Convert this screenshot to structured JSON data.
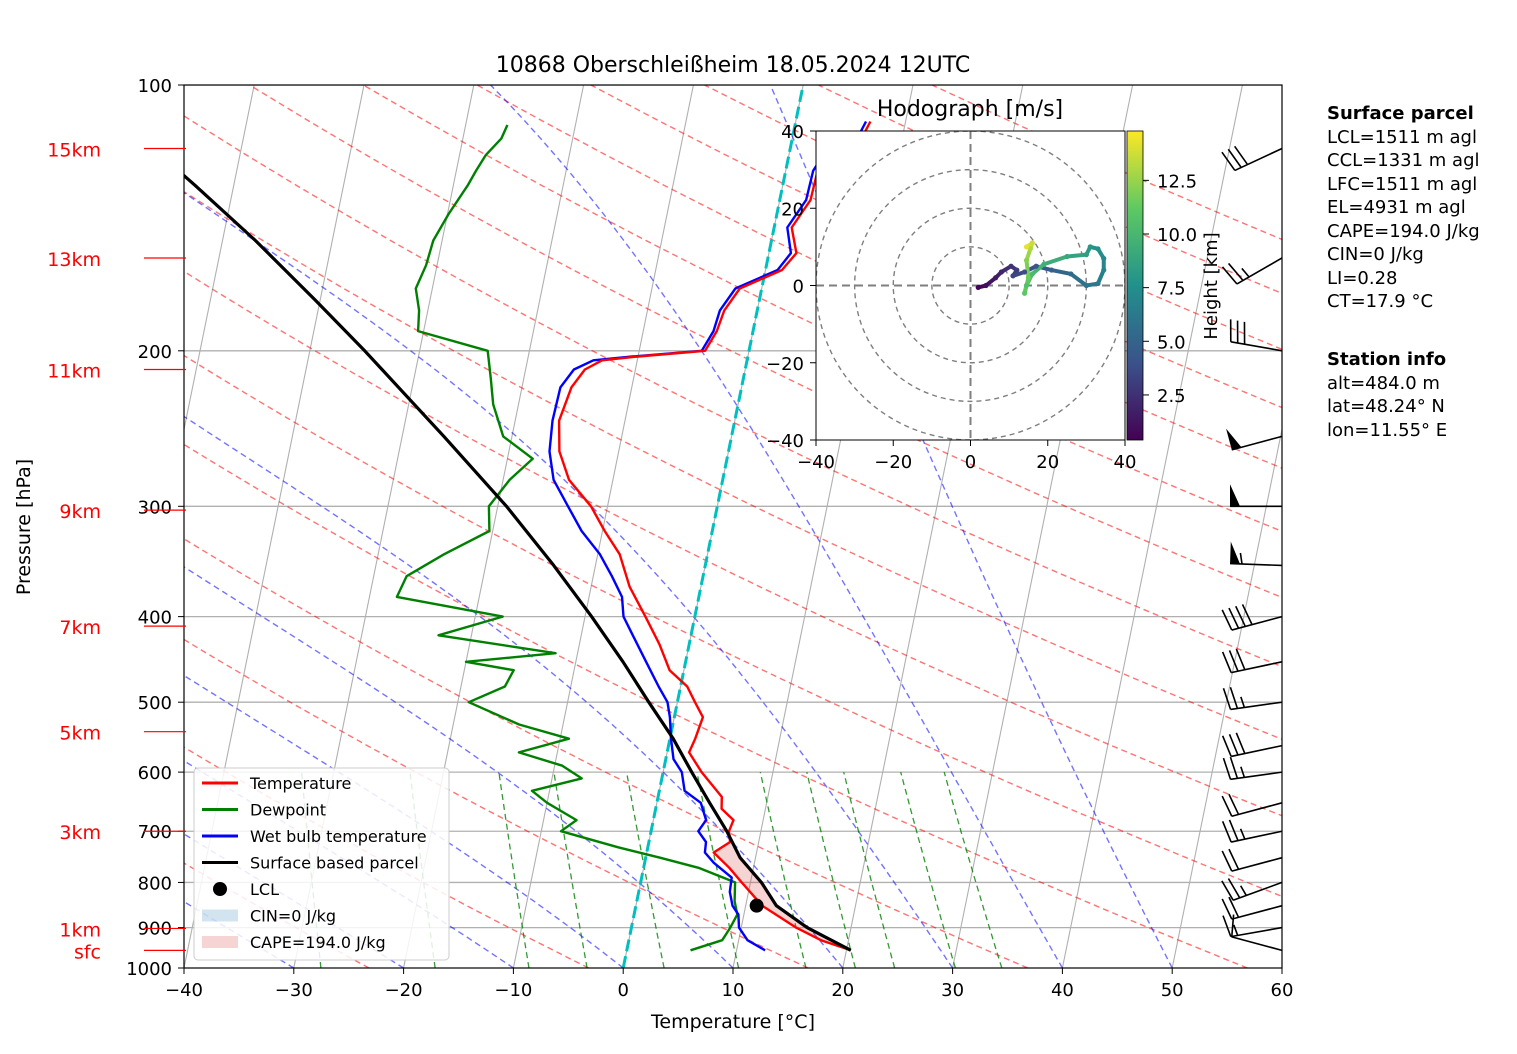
{
  "chart_data": {
    "type": "line",
    "title": "10868 Oberschleißheim 18.05.2024 12UTC",
    "xlabel": "Temperature [°C]",
    "ylabel": "Pressure [hPa]",
    "xlim": [
      -40,
      60
    ],
    "ylim": [
      1000,
      100
    ],
    "y_scale": "log",
    "grid": true,
    "x_ticks": [
      "−40",
      "−30",
      "−20",
      "−10",
      "0",
      "10",
      "20",
      "30",
      "40",
      "50",
      "60"
    ],
    "y_ticks": [
      "100",
      "200",
      "300",
      "400",
      "500",
      "600",
      "700",
      "800",
      "900",
      "1000"
    ],
    "height_labels": [
      {
        "label": "15km",
        "p": 118
      },
      {
        "label": "13km",
        "p": 157
      },
      {
        "label": "11km",
        "p": 210
      },
      {
        "label": "9km",
        "p": 303
      },
      {
        "label": "7km",
        "p": 410
      },
      {
        "label": "5km",
        "p": 540
      },
      {
        "label": "3km",
        "p": 700
      },
      {
        "label": "1km",
        "p": 902
      },
      {
        "label": "sfc",
        "p": 955
      }
    ],
    "legend": {
      "placement": "lower-left",
      "entries": [
        {
          "label": "Temperature",
          "color": "#ff0000",
          "kind": "line"
        },
        {
          "label": "Dewpoint",
          "color": "#008000",
          "kind": "line"
        },
        {
          "label": "Wet bulb temperature",
          "color": "#0000ff",
          "kind": "line"
        },
        {
          "label": "Surface based parcel",
          "color": "#000000",
          "kind": "line"
        },
        {
          "label": "LCL",
          "color": "#000000",
          "kind": "dot"
        },
        {
          "label": "CIN=0 J/kg",
          "color": "#1f77b4",
          "kind": "patch"
        },
        {
          "label": "CAPE=194.0 J/kg",
          "color": "#d62728",
          "kind": "patch"
        }
      ]
    },
    "series": [
      {
        "name": "Temperature",
        "color": "#ff0000",
        "points": [
          [
            955,
            20.4
          ],
          [
            930,
            17.5
          ],
          [
            900,
            15.0
          ],
          [
            850,
            11.5
          ],
          [
            800,
            9.2
          ],
          [
            770,
            7.8
          ],
          [
            740,
            6.1
          ],
          [
            720,
            7.4
          ],
          [
            700,
            7.1
          ],
          [
            680,
            7.3
          ],
          [
            660,
            6.0
          ],
          [
            640,
            5.8
          ],
          [
            600,
            3.5
          ],
          [
            570,
            2.0
          ],
          [
            550,
            2.3
          ],
          [
            520,
            2.6
          ],
          [
            500,
            1.6
          ],
          [
            480,
            0.6
          ],
          [
            460,
            -1.3
          ],
          [
            430,
            -2.7
          ],
          [
            400,
            -4.5
          ],
          [
            370,
            -6.5
          ],
          [
            340,
            -8.0
          ],
          [
            320,
            -9.8
          ],
          [
            300,
            -11.5
          ],
          [
            280,
            -14.0
          ],
          [
            260,
            -15.4
          ],
          [
            240,
            -16.0
          ],
          [
            220,
            -15.5
          ],
          [
            210,
            -14.6
          ],
          [
            205,
            -13.2
          ],
          [
            203,
            -10.0
          ],
          [
            200,
            -4.0
          ],
          [
            190,
            -3.3
          ],
          [
            180,
            -3.0
          ],
          [
            170,
            -2.0
          ],
          [
            162,
            1.5
          ],
          [
            155,
            2.5
          ],
          [
            145,
            1.6
          ],
          [
            135,
            2.8
          ],
          [
            125,
            2.9
          ],
          [
            118,
            3.8
          ],
          [
            113,
            6.5
          ],
          [
            110,
            6.8
          ]
        ]
      },
      {
        "name": "Dewpoint",
        "color": "#008000",
        "points": [
          [
            955,
            5.8
          ],
          [
            930,
            8.5
          ],
          [
            900,
            9.0
          ],
          [
            870,
            9.4
          ],
          [
            840,
            8.9
          ],
          [
            800,
            8.6
          ],
          [
            770,
            5.0
          ],
          [
            750,
            1.3
          ],
          [
            730,
            -2.7
          ],
          [
            700,
            -8.2
          ],
          [
            680,
            -7.0
          ],
          [
            650,
            -10.0
          ],
          [
            630,
            -11.6
          ],
          [
            610,
            -7.3
          ],
          [
            590,
            -9.3
          ],
          [
            570,
            -13.5
          ],
          [
            550,
            -9.2
          ],
          [
            530,
            -14.0
          ],
          [
            500,
            -19.0
          ],
          [
            480,
            -16.0
          ],
          [
            460,
            -15.5
          ],
          [
            450,
            -20.0
          ],
          [
            440,
            -12.0
          ],
          [
            420,
            -23.0
          ],
          [
            400,
            -17.5
          ],
          [
            380,
            -27.5
          ],
          [
            360,
            -27.0
          ],
          [
            340,
            -24.0
          ],
          [
            320,
            -20.3
          ],
          [
            300,
            -20.8
          ],
          [
            280,
            -19.4
          ],
          [
            265,
            -17.7
          ],
          [
            250,
            -20.8
          ],
          [
            230,
            -22.3
          ],
          [
            215,
            -23.0
          ],
          [
            200,
            -23.8
          ],
          [
            190,
            -30.5
          ],
          [
            180,
            -30.8
          ],
          [
            170,
            -31.5
          ],
          [
            160,
            -31.0
          ],
          [
            150,
            -30.8
          ],
          [
            140,
            -29.9
          ],
          [
            130,
            -28.7
          ],
          [
            125,
            -28.2
          ],
          [
            120,
            -27.6
          ],
          [
            115,
            -26.5
          ],
          [
            111,
            -26.2
          ]
        ]
      },
      {
        "name": "Wet bulb temperature",
        "color": "#0000ff",
        "points": [
          [
            955,
            12.6
          ],
          [
            930,
            10.8
          ],
          [
            900,
            9.8
          ],
          [
            870,
            9.5
          ],
          [
            850,
            8.8
          ],
          [
            820,
            8.3
          ],
          [
            790,
            8.2
          ],
          [
            760,
            6.3
          ],
          [
            740,
            5.3
          ],
          [
            720,
            5.2
          ],
          [
            700,
            4.3
          ],
          [
            680,
            4.8
          ],
          [
            650,
            4.0
          ],
          [
            630,
            2.3
          ],
          [
            600,
            1.7
          ],
          [
            580,
            0.7
          ],
          [
            550,
            0.1
          ],
          [
            520,
            -0.4
          ],
          [
            500,
            -0.9
          ],
          [
            480,
            -2.0
          ],
          [
            450,
            -3.6
          ],
          [
            420,
            -5.3
          ],
          [
            400,
            -6.5
          ],
          [
            380,
            -7.0
          ],
          [
            360,
            -8.3
          ],
          [
            340,
            -9.8
          ],
          [
            320,
            -11.9
          ],
          [
            300,
            -13.6
          ],
          [
            280,
            -15.4
          ],
          [
            260,
            -16.3
          ],
          [
            240,
            -16.6
          ],
          [
            220,
            -16.5
          ],
          [
            210,
            -15.6
          ],
          [
            205,
            -14.0
          ],
          [
            203,
            -10.5
          ],
          [
            200,
            -4.3
          ],
          [
            190,
            -3.6
          ],
          [
            180,
            -3.4
          ],
          [
            170,
            -2.4
          ],
          [
            162,
            1.1
          ],
          [
            155,
            2.0
          ],
          [
            145,
            1.2
          ],
          [
            135,
            2.4
          ],
          [
            125,
            2.5
          ],
          [
            118,
            3.4
          ],
          [
            113,
            6.1
          ],
          [
            110,
            6.4
          ]
        ]
      },
      {
        "name": "Surface based parcel",
        "color": "#000000",
        "points": [
          [
            955,
            20.4
          ],
          [
            900,
            16.0
          ],
          [
            850,
            12.8
          ],
          [
            800,
            11.0
          ],
          [
            750,
            8.6
          ],
          [
            700,
            6.9
          ],
          [
            650,
            4.8
          ],
          [
            600,
            2.6
          ],
          [
            550,
            0.3
          ],
          [
            500,
            -2.6
          ],
          [
            450,
            -5.7
          ],
          [
            400,
            -9.4
          ],
          [
            350,
            -13.8
          ],
          [
            300,
            -19.2
          ],
          [
            250,
            -26.2
          ],
          [
            200,
            -35.0
          ],
          [
            175,
            -40.5
          ],
          [
            150,
            -47.0
          ],
          [
            130,
            -53.5
          ],
          [
            118,
            -58.0
          ]
        ]
      }
    ],
    "lcl": {
      "p": 850,
      "t": 11.0
    },
    "wind_profile": [
      {
        "p": 118,
        "speed_kt": 30,
        "dir_deg": 245
      },
      {
        "p": 157,
        "speed_kt": 25,
        "dir_deg": 240
      },
      {
        "p": 200,
        "speed_kt": 30,
        "dir_deg": 280
      },
      {
        "p": 250,
        "speed_kt": 50,
        "dir_deg": 255
      },
      {
        "p": 300,
        "speed_kt": 50,
        "dir_deg": 270
      },
      {
        "p": 350,
        "speed_kt": 55,
        "dir_deg": 272
      },
      {
        "p": 400,
        "speed_kt": 40,
        "dir_deg": 255
      },
      {
        "p": 450,
        "speed_kt": 30,
        "dir_deg": 258
      },
      {
        "p": 500,
        "speed_kt": 25,
        "dir_deg": 262
      },
      {
        "p": 560,
        "speed_kt": 30,
        "dir_deg": 258
      },
      {
        "p": 600,
        "speed_kt": 25,
        "dir_deg": 262
      },
      {
        "p": 650,
        "speed_kt": 20,
        "dir_deg": 255
      },
      {
        "p": 700,
        "speed_kt": 25,
        "dir_deg": 258
      },
      {
        "p": 750,
        "speed_kt": 20,
        "dir_deg": 255
      },
      {
        "p": 800,
        "speed_kt": 25,
        "dir_deg": 250
      },
      {
        "p": 850,
        "speed_kt": 20,
        "dir_deg": 255
      },
      {
        "p": 900,
        "speed_kt": 15,
        "dir_deg": 260
      },
      {
        "p": 955,
        "speed_kt": 10,
        "dir_deg": 285
      }
    ],
    "hodograph": {
      "title": "Hodograph [m/s]",
      "xlim": [
        -40,
        40
      ],
      "ylim": [
        -40,
        40
      ],
      "ticks": [
        "−40",
        "−20",
        "0",
        "20",
        "40"
      ],
      "ring_radii": [
        10,
        20,
        30,
        40
      ],
      "colorbar_label": "Height [km]",
      "colorbar_ticks": [
        "2.5",
        "5.0",
        "7.5",
        "10.0",
        "12.5"
      ],
      "colorbar_range": [
        0.4,
        14.8
      ],
      "colormap": [
        "#440154",
        "#3b528b",
        "#21918c",
        "#5ec962",
        "#fde725"
      ],
      "points": [
        {
          "u": 2.0,
          "v": -0.5,
          "h": 0.5
        },
        {
          "u": 4.0,
          "v": 0.0,
          "h": 1.0
        },
        {
          "u": 6.5,
          "v": 2.0,
          "h": 1.5
        },
        {
          "u": 8.0,
          "v": 3.5,
          "h": 2.0
        },
        {
          "u": 10.5,
          "v": 5.0,
          "h": 2.6
        },
        {
          "u": 12.0,
          "v": 4.0,
          "h": 3.0
        },
        {
          "u": 11.0,
          "v": 2.5,
          "h": 3.4
        },
        {
          "u": 14.0,
          "v": 3.5,
          "h": 3.8
        },
        {
          "u": 17.0,
          "v": 5.0,
          "h": 4.2
        },
        {
          "u": 21.0,
          "v": 4.0,
          "h": 4.8
        },
        {
          "u": 26.0,
          "v": 3.0,
          "h": 5.4
        },
        {
          "u": 30.0,
          "v": 0.0,
          "h": 6.0
        },
        {
          "u": 33.0,
          "v": 0.5,
          "h": 6.4
        },
        {
          "u": 34.5,
          "v": 4.0,
          "h": 6.8
        },
        {
          "u": 34.5,
          "v": 7.0,
          "h": 7.1
        },
        {
          "u": 33.0,
          "v": 9.5,
          "h": 7.6
        },
        {
          "u": 31.0,
          "v": 10.0,
          "h": 8.0
        },
        {
          "u": 30.0,
          "v": 8.0,
          "h": 8.4
        },
        {
          "u": 25.0,
          "v": 7.5,
          "h": 9.0
        },
        {
          "u": 19.0,
          "v": 5.5,
          "h": 9.6
        },
        {
          "u": 16.0,
          "v": 3.0,
          "h": 10.2
        },
        {
          "u": 14.5,
          "v": 0.0,
          "h": 10.6
        },
        {
          "u": 14.0,
          "v": -2.0,
          "h": 11.0
        },
        {
          "u": 15.0,
          "v": 2.0,
          "h": 11.5
        },
        {
          "u": 14.5,
          "v": 6.5,
          "h": 12.2
        },
        {
          "u": 15.5,
          "v": 9.5,
          "h": 13.0
        },
        {
          "u": 16.0,
          "v": 11.0,
          "h": 13.6
        },
        {
          "u": 14.5,
          "v": 10.0,
          "h": 14.3
        }
      ]
    }
  },
  "surface_parcel": {
    "heading": "Surface parcel",
    "lines": [
      "LCL=1511 m agl",
      "CCL=1331 m agl",
      "LFC=1511 m agl",
      "EL=4931 m agl",
      "CAPE=194.0 J/kg",
      "CIN=0 J/kg",
      "LI=0.28",
      "CT=17.9 °C"
    ]
  },
  "station_info": {
    "heading": "Station info",
    "lines": [
      "alt=484.0 m",
      "lat=48.24° N",
      "lon=11.55° E"
    ]
  },
  "colors": {
    "isotherm": "#b0b0b0",
    "dry_adiabat": "#ff0000",
    "moist_adiabat": "#0000ff",
    "mixing_ratio": "#008000",
    "freezing_line": "#00bfbf",
    "height_label": "#ff0000",
    "cape_fill": "#d62728"
  }
}
